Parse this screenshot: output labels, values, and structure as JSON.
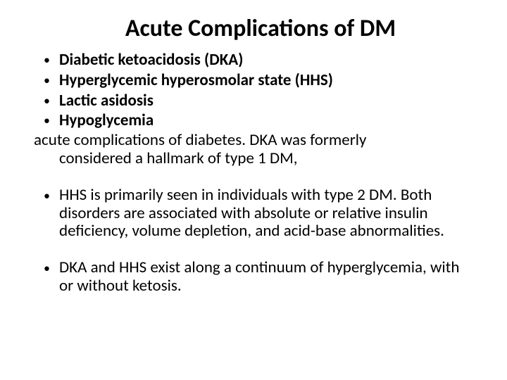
{
  "slide": {
    "title": "Acute Complications of DM",
    "boldBullets": [
      "Diabetic ketoacidosis (DKA)",
      "Hyperglycemic hyperosmolar state (HHS)",
      "Lactic asidosis",
      "Hypoglycemia"
    ],
    "paragraph1_line1": " acute complications of diabetes. DKA was formerly",
    "paragraph1_line2": "considered a hallmark of type 1 DM,",
    "bodyBullets": [
      "HHS is primarily seen in individuals with type 2 DM. Both disorders are associated with absolute or relative insulin deficiency, volume depletion, and acid-base abnormalities.",
      "DKA and HHS exist along a continuum of hyperglycemia, with or without ketosis."
    ]
  },
  "style": {
    "background_color": "#ffffff",
    "text_color": "#000000",
    "title_fontsize": 34,
    "body_fontsize": 23,
    "font_family": "Calibri, Arial, sans-serif"
  }
}
